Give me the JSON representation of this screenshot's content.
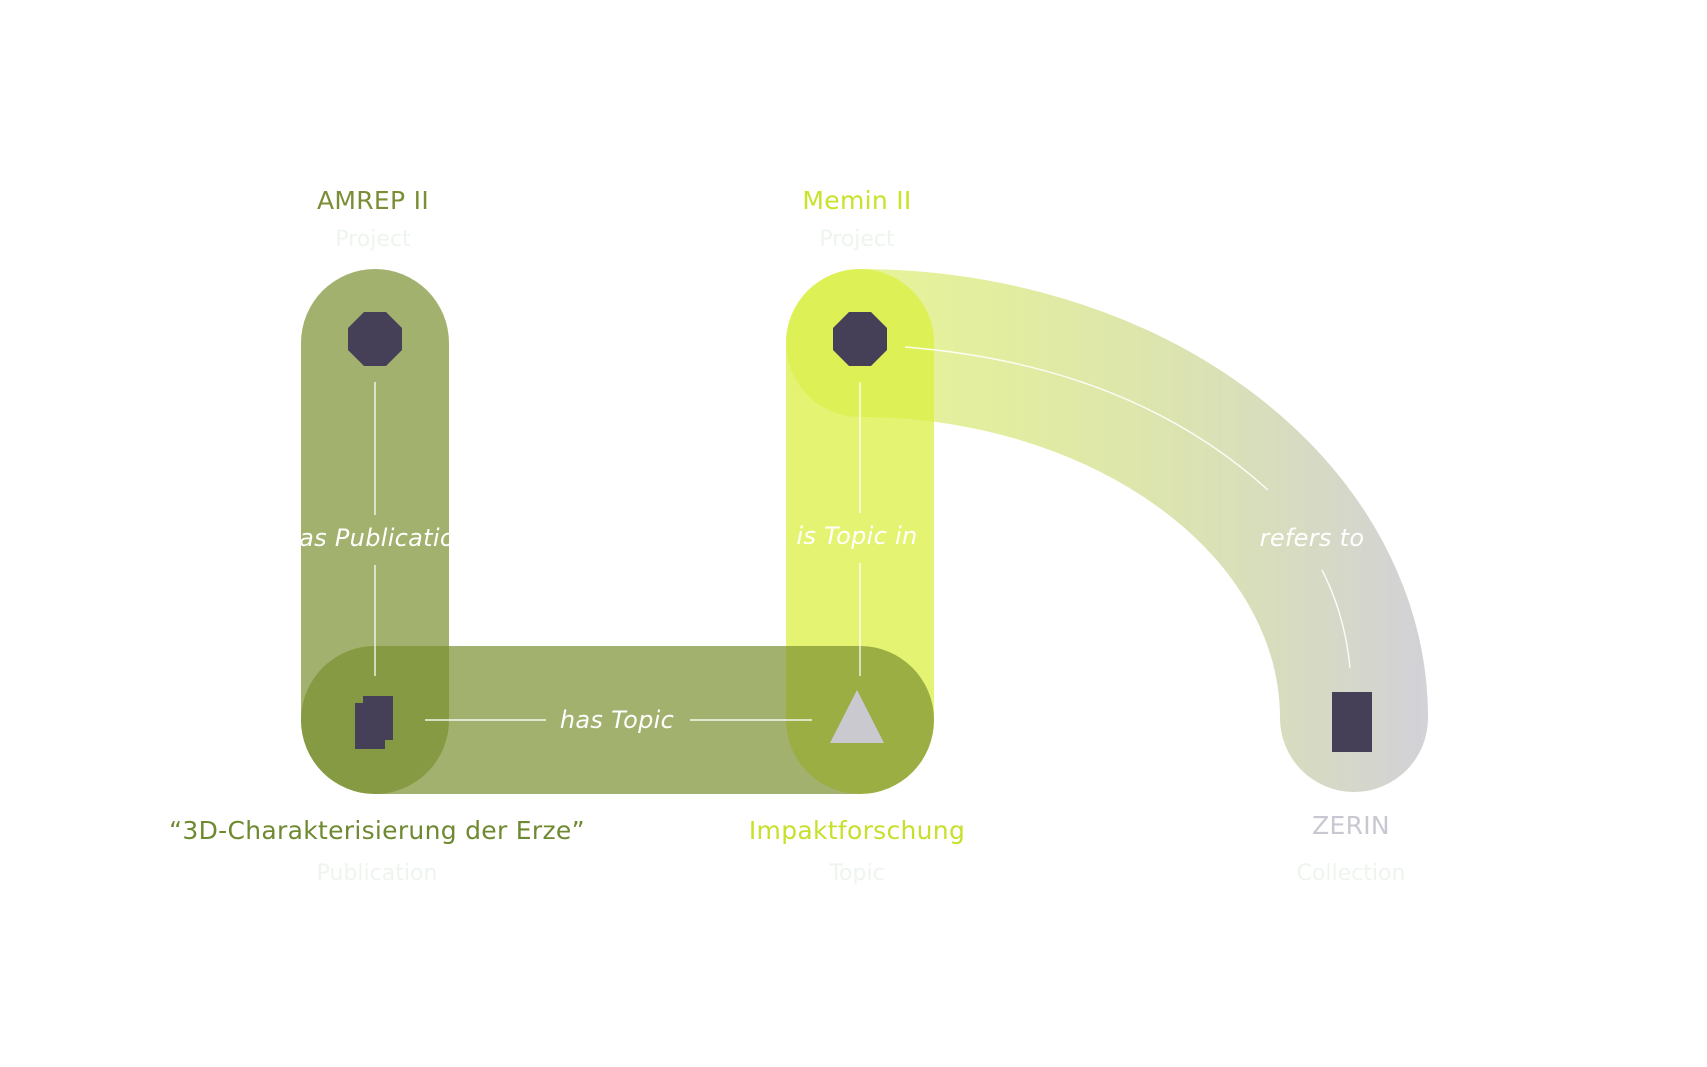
{
  "nodes": {
    "amrep": {
      "title": "AMREP II",
      "type": "Project",
      "icon": "octagon-icon",
      "color": "#7a8f35"
    },
    "memin": {
      "title": "Memin II",
      "type": "Project",
      "icon": "octagon-icon",
      "color": "#c9e22a"
    },
    "publication": {
      "title": "“3D-Charakterisierung der Erze”",
      "type": "Publication",
      "icon": "document-stack-icon",
      "color": "#6e8930"
    },
    "topic": {
      "title": "Impaktforschung",
      "type": "Topic",
      "icon": "triangle-icon",
      "color": "#c8df2b"
    },
    "zerin": {
      "title": "ZERIN",
      "type": "Collection",
      "icon": "rectangle-icon",
      "color": "#c8c8d2"
    }
  },
  "edges": {
    "has_publication": "has Publication",
    "has_topic": "has Topic",
    "is_topic_in": "is Topic in",
    "refers_to": "refers to"
  },
  "colors": {
    "olive_band": "#8ca055",
    "lime_band": "#d9f03c",
    "grey_end": "#cfcfd6",
    "icon_dark": "#454058",
    "icon_light": "#c9c9cf"
  }
}
